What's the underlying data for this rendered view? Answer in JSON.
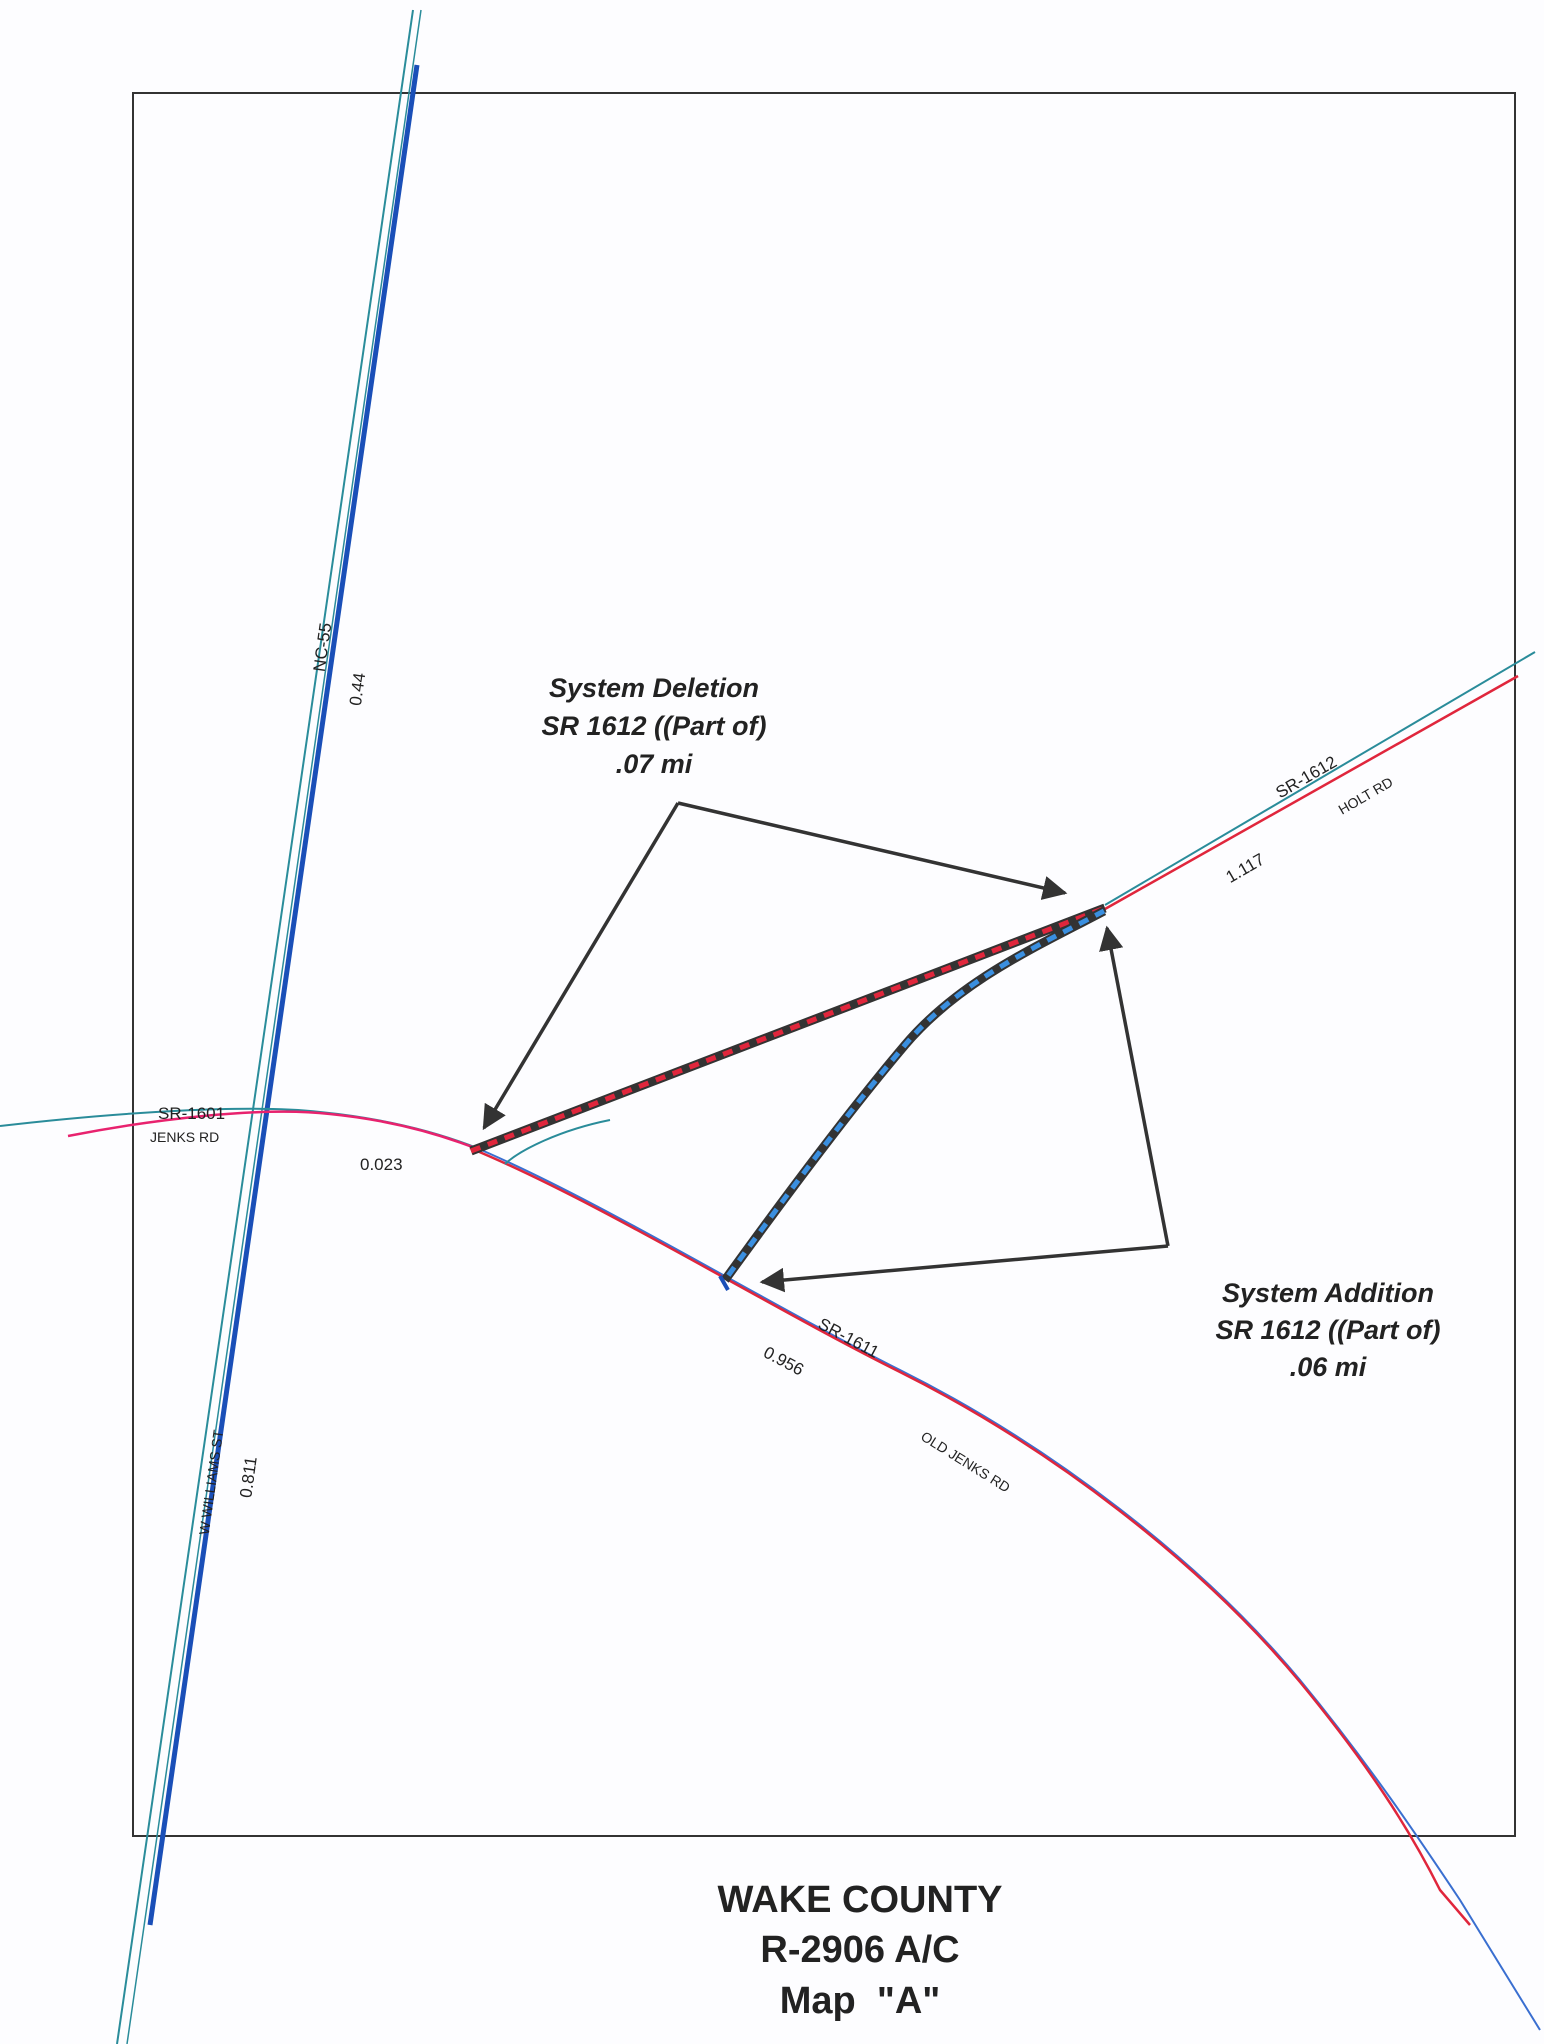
{
  "map": {
    "title": {
      "county": "WAKE COUNTY",
      "project": "R-2906 A/C",
      "map_name": "Map  \"A\""
    },
    "roads": {
      "nc55": {
        "route": "NC-55",
        "length": "0.44"
      },
      "w_williams": {
        "name": "W WILLIAMS ST",
        "length": "0.811"
      },
      "sr1601": {
        "route": "SR-1601",
        "name": "JENKS RD",
        "length": "0.023"
      },
      "sr1611": {
        "route": "SR-1611",
        "name": "OLD JENKS RD",
        "length": "0.956"
      },
      "sr1612": {
        "route": "SR-1612",
        "name": "HOLT RD",
        "length": "1.117"
      }
    },
    "callouts": {
      "deletion": {
        "line1": "System Deletion",
        "line2": "SR 1612 ((Part of)",
        "line3": ".07 mi"
      },
      "addition": {
        "line1": "System Addition",
        "line2": "SR 1612 ((Part of)",
        "line3": ".06 mi"
      }
    },
    "colors": {
      "nc55_blue": "#1a4fb8",
      "thin_teal": "#2a8c9a",
      "road_red": "#e0263c",
      "road_magenta": "#e8226e",
      "deletion_dash": "#e0263c",
      "addition_dash": "#3a8fe0",
      "dark_segment": "#333333",
      "arrow": "#333333"
    }
  }
}
